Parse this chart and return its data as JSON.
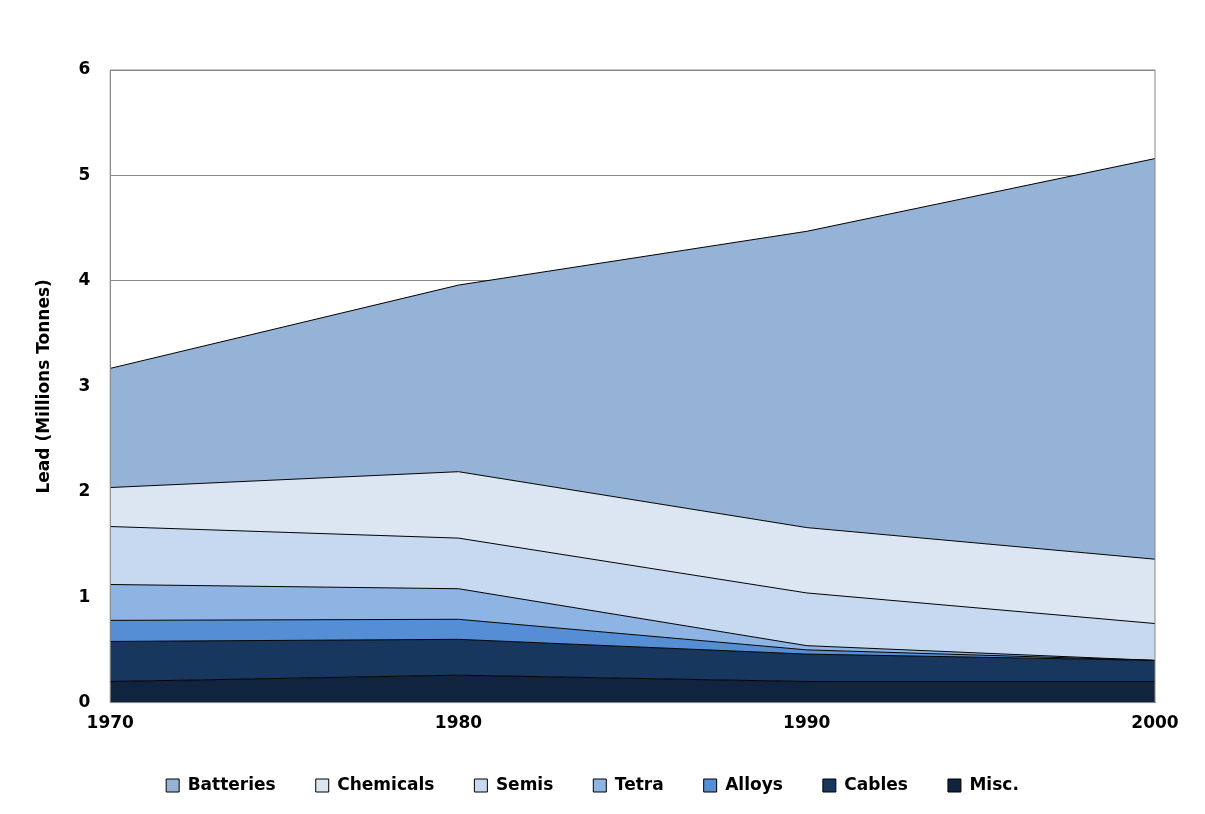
{
  "chart_data": {
    "type": "area",
    "ylabel": "Lead (Millions Tonnes)",
    "x": [
      1970,
      1980,
      1990,
      2000
    ],
    "xlim": [
      1970,
      2000
    ],
    "xticks": [
      1970,
      1980,
      1990,
      2000
    ],
    "ylim": [
      0,
      6
    ],
    "yticks": [
      0,
      1,
      2,
      3,
      4,
      5,
      6
    ],
    "stacked": true,
    "grid": "y",
    "legend": "bottom",
    "series": [
      {
        "name": "Misc.",
        "color": "#10243f",
        "values": [
          0.2,
          0.26,
          0.2,
          0.2
        ]
      },
      {
        "name": "Cables",
        "color": "#17375e",
        "values": [
          0.38,
          0.34,
          0.26,
          0.2
        ]
      },
      {
        "name": "Alloys",
        "color": "#558ed5",
        "values": [
          0.2,
          0.19,
          0.04,
          0
        ]
      },
      {
        "name": "Tetra",
        "color": "#8db4e2",
        "values": [
          0.34,
          0.29,
          0.04,
          0
        ]
      },
      {
        "name": "Semis",
        "color": "#c6d9f1",
        "values": [
          0.55,
          0.48,
          0.5,
          0.35
        ]
      },
      {
        "name": "Chemicals",
        "color": "#dce6f2",
        "values": [
          0.37,
          0.63,
          0.62,
          0.61
        ]
      },
      {
        "name": "Batteries",
        "color": "#95b3d7",
        "values": [
          1.13,
          1.77,
          2.81,
          3.8
        ]
      }
    ]
  }
}
